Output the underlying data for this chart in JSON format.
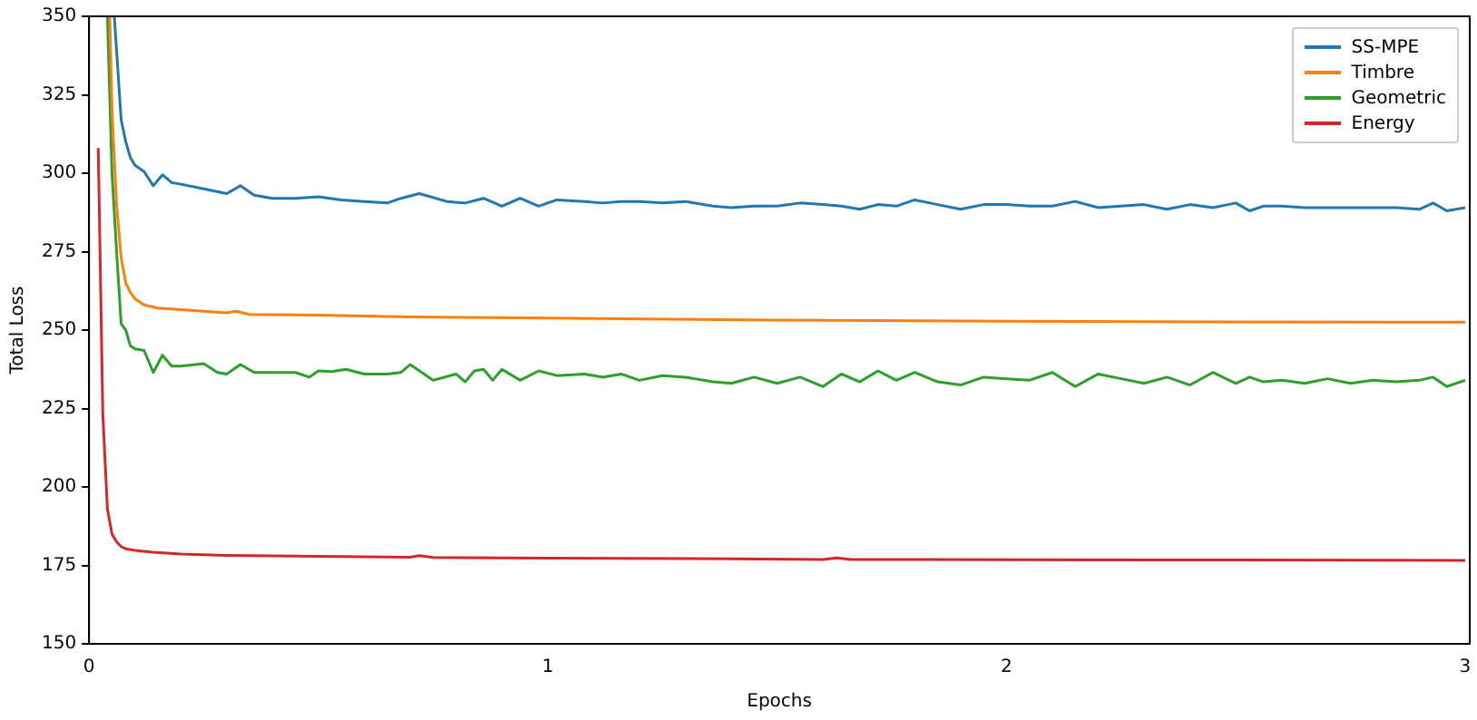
{
  "chart_data": {
    "type": "line",
    "xlabel": "Epochs",
    "ylabel": "Total Loss",
    "xlim": [
      0,
      3.01
    ],
    "xticks": [
      0,
      1,
      2,
      3
    ],
    "ylim": [
      150,
      350
    ],
    "yticks": [
      150,
      175,
      200,
      225,
      250,
      275,
      300,
      325,
      350
    ],
    "grid": false,
    "legend": "top right",
    "marker": "none",
    "line_style": "solid",
    "series": [
      {
        "name": "SS-MPE",
        "color": "#1f77b4",
        "x": [
          0.055,
          0.07,
          0.08,
          0.09,
          0.1,
          0.12,
          0.14,
          0.16,
          0.18,
          0.2,
          0.25,
          0.3,
          0.33,
          0.36,
          0.4,
          0.45,
          0.5,
          0.55,
          0.6,
          0.65,
          0.68,
          0.72,
          0.78,
          0.82,
          0.86,
          0.9,
          0.94,
          0.98,
          1.02,
          1.08,
          1.12,
          1.16,
          1.2,
          1.25,
          1.3,
          1.36,
          1.4,
          1.45,
          1.5,
          1.55,
          1.6,
          1.64,
          1.68,
          1.72,
          1.76,
          1.8,
          1.85,
          1.9,
          1.95,
          2.0,
          2.05,
          2.1,
          2.15,
          2.2,
          2.25,
          2.3,
          2.35,
          2.4,
          2.45,
          2.5,
          2.53,
          2.56,
          2.6,
          2.65,
          2.7,
          2.75,
          2.8,
          2.85,
          2.9,
          2.93,
          2.96,
          3.0
        ],
        "values": [
          350,
          317,
          310,
          305,
          302.5,
          300.5,
          296,
          299.5,
          297,
          296.5,
          295,
          293.5,
          296,
          293,
          292,
          292,
          292.5,
          291.5,
          291,
          290.5,
          292,
          293.5,
          291,
          290.5,
          292,
          289.5,
          292,
          289.5,
          291.5,
          291,
          290.5,
          291,
          291,
          290.5,
          291,
          289.5,
          289,
          289.5,
          289.5,
          290.5,
          290,
          289.5,
          288.5,
          290,
          289.5,
          291.5,
          290,
          288.5,
          290,
          290,
          289.5,
          289.5,
          291,
          289,
          289.5,
          290,
          288.5,
          290,
          289,
          290.5,
          288,
          289.5,
          289.5,
          289,
          289,
          289,
          289,
          289,
          288.5,
          290.5,
          288,
          289
        ]
      },
      {
        "name": "Timbre",
        "color": "#ff7f0e",
        "x": [
          0.045,
          0.05,
          0.06,
          0.07,
          0.08,
          0.09,
          0.1,
          0.12,
          0.15,
          0.2,
          0.3,
          0.32,
          0.35,
          0.5,
          0.7,
          1.0,
          1.5,
          2.0,
          2.5,
          3.0
        ],
        "values": [
          350,
          320,
          290,
          273,
          265,
          262,
          260,
          258,
          257,
          256.5,
          255.5,
          256,
          255,
          254.8,
          254.2,
          253.8,
          253.2,
          252.8,
          252.6,
          252.5
        ]
      },
      {
        "name": "Geometric",
        "color": "#2ca02c",
        "x": [
          0.04,
          0.05,
          0.06,
          0.07,
          0.08,
          0.09,
          0.1,
          0.12,
          0.14,
          0.16,
          0.18,
          0.2,
          0.25,
          0.28,
          0.3,
          0.33,
          0.36,
          0.4,
          0.45,
          0.48,
          0.5,
          0.53,
          0.56,
          0.6,
          0.65,
          0.68,
          0.7,
          0.75,
          0.8,
          0.82,
          0.84,
          0.86,
          0.88,
          0.9,
          0.94,
          0.98,
          1.02,
          1.08,
          1.12,
          1.16,
          1.2,
          1.25,
          1.3,
          1.36,
          1.4,
          1.45,
          1.5,
          1.55,
          1.6,
          1.64,
          1.68,
          1.72,
          1.76,
          1.8,
          1.85,
          1.9,
          1.95,
          2.0,
          2.05,
          2.1,
          2.15,
          2.2,
          2.25,
          2.3,
          2.35,
          2.4,
          2.45,
          2.5,
          2.53,
          2.56,
          2.6,
          2.65,
          2.7,
          2.75,
          2.8,
          2.85,
          2.9,
          2.93,
          2.96,
          3.0
        ],
        "values": [
          350,
          300,
          275,
          252,
          250,
          245,
          244,
          243.5,
          236.5,
          242,
          238.5,
          238.5,
          239.3,
          236.5,
          236,
          239,
          236.5,
          236.5,
          236.5,
          235,
          237,
          236.8,
          237.5,
          236,
          236,
          236.5,
          239,
          234,
          236,
          233.5,
          237,
          237.5,
          234,
          237.5,
          234,
          237,
          235.5,
          236,
          235,
          236,
          234,
          235.5,
          235,
          233.5,
          233,
          235,
          233,
          235,
          232,
          236,
          233.5,
          237,
          234,
          236.5,
          233.5,
          232.5,
          235,
          234.5,
          234,
          236.5,
          232,
          236,
          234.5,
          233,
          235,
          232.5,
          236.5,
          233,
          235,
          233.5,
          234,
          233,
          234.5,
          233,
          234,
          233.5,
          234,
          235,
          232,
          234
        ]
      },
      {
        "name": "Energy",
        "color": "#d62728",
        "x": [
          0.02,
          0.03,
          0.04,
          0.05,
          0.06,
          0.07,
          0.08,
          0.1,
          0.14,
          0.2,
          0.3,
          0.5,
          0.7,
          0.72,
          0.75,
          1.0,
          1.4,
          1.6,
          1.63,
          1.66,
          2.0,
          2.5,
          3.0
        ],
        "values": [
          308,
          223,
          193,
          185,
          182.5,
          181,
          180.3,
          179.8,
          179.2,
          178.6,
          178.2,
          177.9,
          177.6,
          178.1,
          177.5,
          177.3,
          177.1,
          176.9,
          177.4,
          176.9,
          176.8,
          176.7,
          176.6
        ]
      }
    ]
  }
}
